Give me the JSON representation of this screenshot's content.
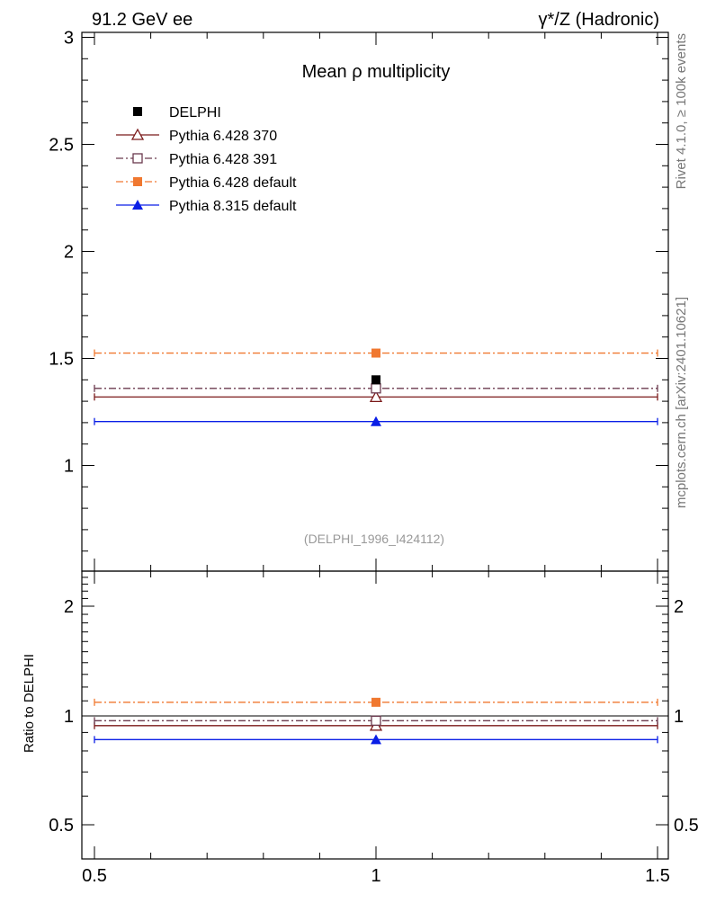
{
  "header": {
    "left": "91.2 GeV ee",
    "right": "γ*/Z (Hadronic)"
  },
  "side": {
    "rivet": "Rivet 4.1.0, ≥ 100k events",
    "mcplots": "mcplots.cern.ch [arXiv:2401.10621]"
  },
  "chart_data": {
    "type": "scatter",
    "title": "Mean ρ multiplicity",
    "watermark": "(DELPHI_1996_I424112)",
    "xlabel": "",
    "ylabel": "",
    "xlim": [
      0.5,
      1.5
    ],
    "ylim": [
      0.5,
      3.0
    ],
    "x_ticks": [
      "0.5",
      "1",
      "1.5"
    ],
    "y_ticks": [
      "1",
      "1.5",
      "2",
      "2.5",
      "3"
    ],
    "ratio": {
      "ylabel": "Ratio to DELPHI",
      "ylim": [
        0.4,
        2.5
      ],
      "y_ticks": [
        "0.5",
        "1",
        "2"
      ]
    },
    "series": [
      {
        "name": "DELPHI",
        "x": 1.0,
        "y": 1.4,
        "ratio": 1.0,
        "color": "#000000",
        "marker": "filled-square",
        "line": "none"
      },
      {
        "name": "Pythia 6.428 370",
        "x": 1.0,
        "y": 1.32,
        "ratio": 0.94,
        "color": "#7b1a1a",
        "marker": "open-triangle",
        "line": "solid"
      },
      {
        "name": "Pythia 6.428 391",
        "x": 1.0,
        "y": 1.36,
        "ratio": 0.97,
        "color": "#6b3a4e",
        "marker": "open-square",
        "line": "dashdot"
      },
      {
        "name": "Pythia 6.428 default",
        "x": 1.0,
        "y": 1.525,
        "ratio": 1.09,
        "color": "#f07830",
        "marker": "filled-square",
        "line": "dashdot"
      },
      {
        "name": "Pythia 8.315 default",
        "x": 1.0,
        "y": 1.205,
        "ratio": 0.86,
        "color": "#0a1ee6",
        "marker": "filled-triangle",
        "line": "solid"
      }
    ]
  }
}
